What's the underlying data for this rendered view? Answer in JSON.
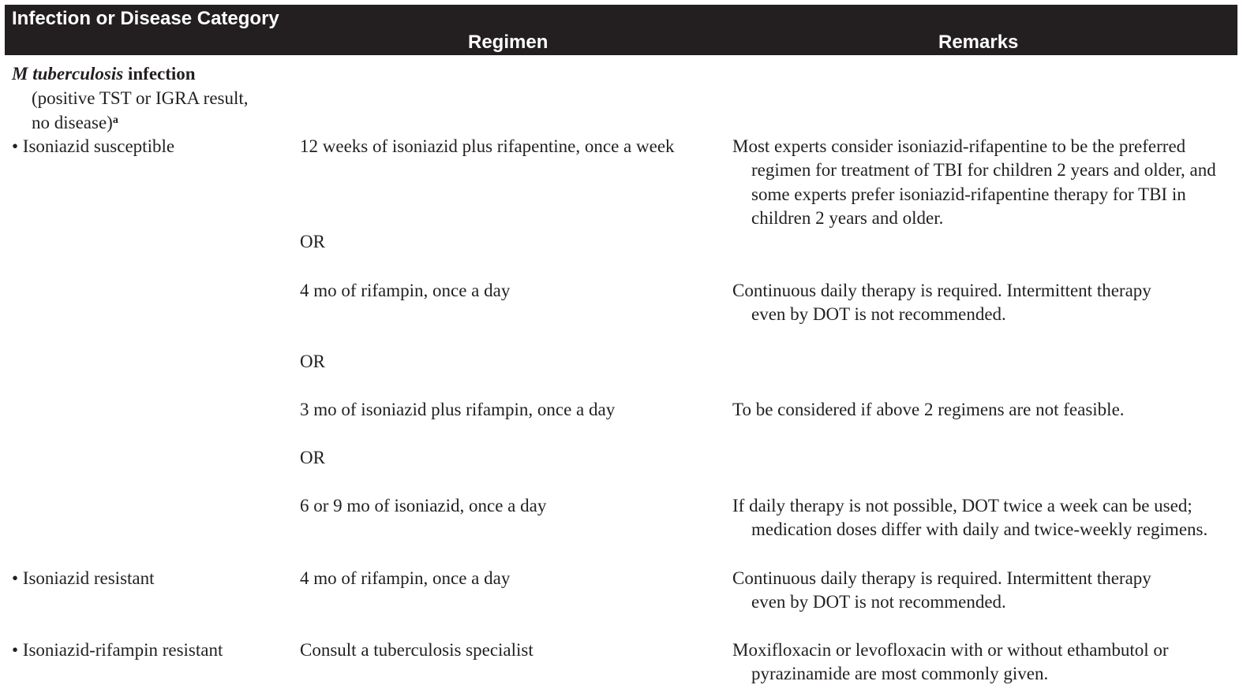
{
  "table": {
    "headers": {
      "category": "Infection or Disease Category",
      "regimen": "Regimen",
      "remarks": "Remarks"
    },
    "section": {
      "title_italic": "M tuberculosis",
      "title_rest": " infection",
      "note_line1": "(positive TST or IGRA result,",
      "note_line2": "no disease)",
      "note_sup": "a"
    },
    "rows": [
      {
        "category": "• Isoniazid susceptible",
        "regimen": "12 weeks of isoniazid plus rifapentine, once a week",
        "remark_first": "Most experts consider isoniazid-rifapentine to be the preferred",
        "remark_rest": "regimen for treatment of TBI for children 2 years and older, and some experts prefer isoniazid-rifapentine therapy for TBI in children 2 years and older."
      },
      {
        "regimen": "OR"
      },
      {
        "regimen": "4 mo of rifampin, once a day",
        "remark_first": "Continuous daily therapy is required. Intermittent therapy",
        "remark_rest": "even by DOT is not recommended."
      },
      {
        "regimen": "OR"
      },
      {
        "regimen": "3 mo of isoniazid plus rifampin, once a day",
        "remark_first": "To be considered if above 2 regimens are not feasible."
      },
      {
        "regimen": "OR"
      },
      {
        "regimen": "6 or 9 mo of isoniazid, once a day",
        "remark_first": "If daily therapy is not possible, DOT twice a week can be used;",
        "remark_rest": "medication doses differ with daily and twice-weekly regimens."
      },
      {
        "category": "• Isoniazid resistant",
        "regimen": "4 mo of rifampin, once a day",
        "remark_first": "Continuous daily therapy is required. Intermittent therapy",
        "remark_rest": "even by DOT is not recommended."
      },
      {
        "category": "• Isoniazid-rifampin resistant",
        "regimen": "Consult a tuberculosis specialist",
        "remark_first": "Moxifloxacin or levofloxacin with or without ethambutol or",
        "remark_rest": "pyrazinamide are most commonly given."
      }
    ]
  }
}
